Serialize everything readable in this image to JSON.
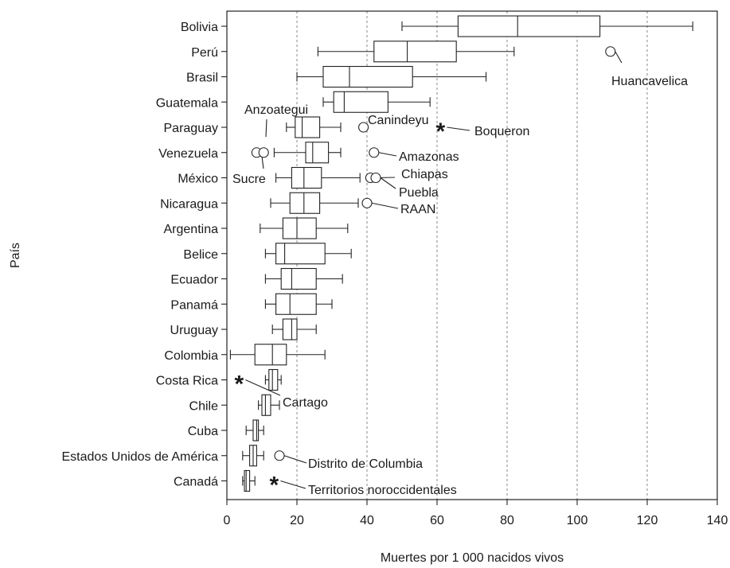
{
  "chart_data": {
    "type": "boxplot",
    "xlabel": "Muertes por 1 000 nacidos vivos",
    "ylabel": "País",
    "xlim": [
      0,
      140
    ],
    "xticks": [
      0,
      20,
      40,
      60,
      80,
      100,
      120,
      140
    ],
    "grid": "vertical dotted",
    "orientation": "horizontal",
    "countries": [
      {
        "name": "Bolivia",
        "min": 50,
        "q1": 66,
        "median": 83,
        "q3": 106.5,
        "max": 133
      },
      {
        "name": "Perú",
        "min": 26,
        "q1": 42,
        "median": 51.5,
        "q3": 65.5,
        "max": 82
      },
      {
        "name": "Brasil",
        "min": 20,
        "q1": 27.5,
        "median": 35,
        "q3": 53,
        "max": 74
      },
      {
        "name": "Guatemala",
        "min": 27.5,
        "q1": 30.5,
        "median": 33.5,
        "q3": 46,
        "max": 58
      },
      {
        "name": "Paraguay",
        "min": 17,
        "q1": 19.5,
        "median": 21.5,
        "q3": 26.5,
        "max": 32.5
      },
      {
        "name": "Venezuela",
        "min": 13.5,
        "q1": 22.5,
        "median": 24.5,
        "q3": 29,
        "max": 32.5
      },
      {
        "name": "México",
        "min": 14,
        "q1": 18.5,
        "median": 22,
        "q3": 27,
        "max": 38
      },
      {
        "name": "Nicaragua",
        "min": 12.5,
        "q1": 18,
        "median": 22,
        "q3": 26.5,
        "max": 37.5
      },
      {
        "name": "Argentina",
        "min": 9.5,
        "q1": 16,
        "median": 20,
        "q3": 25.5,
        "max": 34.5
      },
      {
        "name": "Belice",
        "min": 11,
        "q1": 14,
        "median": 16.5,
        "q3": 28,
        "max": 35.5
      },
      {
        "name": "Ecuador",
        "min": 11,
        "q1": 15.5,
        "median": 18.5,
        "q3": 25.5,
        "max": 33
      },
      {
        "name": "Panamá",
        "min": 11,
        "q1": 14,
        "median": 18,
        "q3": 25.5,
        "max": 30
      },
      {
        "name": "Uruguay",
        "min": 13,
        "q1": 16,
        "median": 18.5,
        "q3": 20,
        "max": 25.5
      },
      {
        "name": "Colombia",
        "min": 1,
        "q1": 8,
        "median": 13,
        "q3": 17,
        "max": 28
      },
      {
        "name": "Costa Rica",
        "min": 11,
        "q1": 12,
        "median": 13,
        "q3": 14.5,
        "max": 15.5
      },
      {
        "name": "Chile",
        "min": 9,
        "q1": 10,
        "median": 11,
        "q3": 12.5,
        "max": 15
      },
      {
        "name": "Cuba",
        "min": 5.5,
        "q1": 7.5,
        "median": 8.5,
        "q3": 9,
        "max": 10.5
      },
      {
        "name": "Estados Unidos de América",
        "min": 4.5,
        "q1": 6.5,
        "median": 7.5,
        "q3": 8.5,
        "max": 10.5
      },
      {
        "name": "Canadá",
        "min": 4.5,
        "q1": 5,
        "median": 5.5,
        "q3": 6.5,
        "max": 8
      }
    ],
    "outliers": [
      {
        "country": "Perú",
        "value": 109.5,
        "symbol": "circle",
        "label": "Huancavelica"
      },
      {
        "country": "Paraguay",
        "value": 39,
        "symbol": "circle",
        "label": "Canindeyu"
      },
      {
        "country": "Paraguay",
        "value": 61,
        "symbol": "star",
        "label": "Boqueron"
      },
      {
        "country": "Paraguay",
        "value": null,
        "symbol": "none",
        "label": "Anzoategui"
      },
      {
        "country": "Venezuela",
        "value": 8.5,
        "symbol": "circle",
        "label": "Sucre"
      },
      {
        "country": "Venezuela",
        "value": 10.5,
        "symbol": "circle",
        "label": ""
      },
      {
        "country": "Venezuela",
        "value": 42,
        "symbol": "circle",
        "label": "Amazonas"
      },
      {
        "country": "México",
        "value": 41,
        "symbol": "circle",
        "label": "Chiapas"
      },
      {
        "country": "México",
        "value": 42.5,
        "symbol": "circle",
        "label": "Puebla"
      },
      {
        "country": "Nicaragua",
        "value": 40,
        "symbol": "circle",
        "label": "RAAN"
      },
      {
        "country": "Costa Rica",
        "value": 3.5,
        "symbol": "star",
        "label": "Cartago"
      },
      {
        "country": "Estados Unidos de América",
        "value": 15,
        "symbol": "circle",
        "label": "Distrito de Columbia"
      },
      {
        "country": "Canadá",
        "value": 13.5,
        "symbol": "star",
        "label": "Territorios noroccidentales"
      }
    ]
  }
}
